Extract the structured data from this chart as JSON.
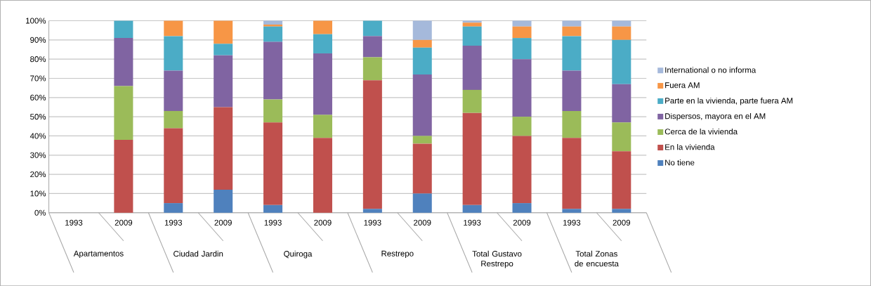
{
  "chart_data": {
    "type": "bar",
    "stacked": true,
    "categories": [
      "1993",
      "2009",
      "1993",
      "2009",
      "1993",
      "2009",
      "1993",
      "2009",
      "1993",
      "2009",
      "1993",
      "2009"
    ],
    "annotations": [
      "Apartamentos",
      "Ciudad Jardin",
      "Quiroga",
      "Restrepo",
      "Total Gustavo Restrepo",
      "Total Zonas de encuesta"
    ],
    "series": [
      {
        "name": "No tiene",
        "color": "#4f81bd",
        "values": [
          null,
          0,
          5,
          12,
          4,
          0,
          2,
          10,
          4,
          5,
          2,
          2
        ]
      },
      {
        "name": "En la vivienda",
        "color": "#c0504d",
        "values": [
          null,
          38,
          39,
          43,
          43,
          39,
          67,
          26,
          48,
          35,
          37,
          30
        ]
      },
      {
        "name": "Cerca de la vivienda",
        "color": "#9bbb59",
        "values": [
          null,
          28,
          9,
          0,
          12,
          12,
          12,
          4,
          12,
          10,
          14,
          15
        ]
      },
      {
        "name": "Dispersos, mayora en el AM",
        "color": "#8064a2",
        "values": [
          null,
          25,
          21,
          27,
          30,
          32,
          11,
          32,
          23,
          30,
          21,
          20
        ]
      },
      {
        "name": "Parte en la vivienda, parte fuera AM",
        "color": "#4bacc6",
        "values": [
          null,
          9,
          18,
          6,
          8,
          10,
          8,
          14,
          10,
          11,
          18,
          23
        ]
      },
      {
        "name": "Fuera AM",
        "color": "#f79646",
        "values": [
          null,
          0,
          8,
          12,
          1,
          7,
          0,
          4,
          2,
          6,
          5,
          7
        ]
      },
      {
        "name": "International o no informa",
        "color": "#a5b9db",
        "values": [
          null,
          0,
          0,
          0,
          2,
          0,
          0,
          10,
          1,
          3,
          3,
          3
        ]
      }
    ],
    "ylim": [
      0,
      100
    ],
    "yticks": [
      {
        "value": 0,
        "label": "0%"
      },
      {
        "value": 10,
        "label": "10%"
      },
      {
        "value": 20,
        "label": "20%"
      },
      {
        "value": 30,
        "label": "30%"
      },
      {
        "value": 40,
        "label": "40%"
      },
      {
        "value": 50,
        "label": "50%"
      },
      {
        "value": 60,
        "label": "60%"
      },
      {
        "value": 70,
        "label": "70%"
      },
      {
        "value": 80,
        "label": "80%"
      },
      {
        "value": 90,
        "label": "90%"
      },
      {
        "value": 100,
        "label": "100%"
      }
    ],
    "grid": "y",
    "legend": "right"
  }
}
